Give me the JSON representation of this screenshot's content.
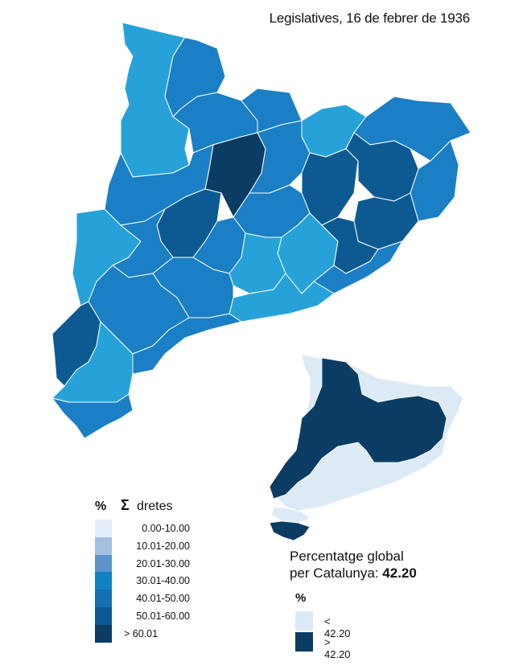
{
  "title": "Legislatives, 16 de febrer de 1936",
  "legend_main": {
    "percent_symbol": "%",
    "sigma_symbol": "Σ",
    "label": "dretes",
    "classes": [
      {
        "label": "0.00-10.00",
        "color": "#e3eef8"
      },
      {
        "label": "10.01-20.00",
        "color": "#a4bee0"
      },
      {
        "label": "20.01-30.00",
        "color": "#5b93cb"
      },
      {
        "label": "30.01-40.00",
        "color": "#0f82c4"
      },
      {
        "label": "40.01-50.00",
        "color": "#1470b3"
      },
      {
        "label": "50.01-60.00",
        "color": "#0d5a92"
      },
      {
        "label": "> 60.01",
        "color": "#0b3c63"
      }
    ]
  },
  "global": {
    "line1": "Percentatge global",
    "line2_prefix": "per Catalunya: ",
    "value": "42.20"
  },
  "legend_inset": {
    "percent_symbol": "%",
    "classes": [
      {
        "label": "< 42.20",
        "color": "#dceaf6"
      },
      {
        "label": "> 42.20",
        "color": "#0b3c63"
      }
    ]
  },
  "colors": {
    "light_blue": "#27a2d9",
    "mid_blue": "#1a7fc4",
    "dark_blue": "#0d5a92",
    "darkest_blue": "#0b3c63",
    "inset_light": "#dceaf6"
  }
}
